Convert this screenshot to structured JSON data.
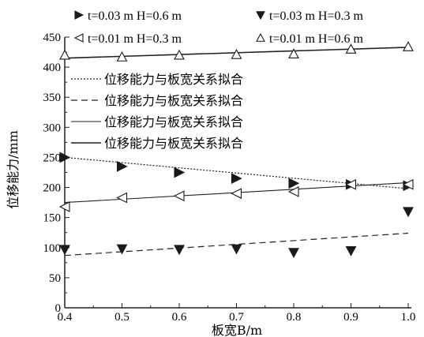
{
  "chart_data": {
    "type": "scatter",
    "xlabel": "板宽B/m",
    "ylabel": "位移能力/mm",
    "xlim": [
      0.4,
      1.0
    ],
    "ylim": [
      0,
      450
    ],
    "xticks": [
      "0.4",
      "0.5",
      "0.6",
      "0.7",
      "0.8",
      "0.9",
      "1.0"
    ],
    "yticks": [
      "0",
      "50",
      "100",
      "150",
      "200",
      "250",
      "300",
      "350",
      "400",
      "450"
    ],
    "grid": false,
    "series": [
      {
        "name": "t=0.03 m H=0.6 m",
        "marker": "triangle-right-filled",
        "x": [
          0.4,
          0.5,
          0.6,
          0.7,
          0.8,
          0.9,
          1.0
        ],
        "y": [
          250,
          235,
          225,
          215,
          207,
          205,
          203
        ]
      },
      {
        "name": "t=0.03 m H=0.3 m",
        "marker": "triangle-down-filled",
        "x": [
          0.4,
          0.5,
          0.6,
          0.7,
          0.8,
          0.9,
          1.0
        ],
        "y": [
          97,
          98,
          97,
          98,
          92,
          95,
          160
        ]
      },
      {
        "name": "t=0.01 m H=0.3 m",
        "marker": "triangle-left-open",
        "x": [
          0.4,
          0.5,
          0.6,
          0.7,
          0.8,
          0.9,
          1.0
        ],
        "y": [
          168,
          183,
          186,
          190,
          193,
          205,
          205
        ]
      },
      {
        "name": "t=0.01 m H=0.6 m",
        "marker": "triangle-up-open",
        "x": [
          0.4,
          0.5,
          0.6,
          0.7,
          0.8,
          0.9,
          1.0
        ],
        "y": [
          420,
          417,
          420,
          421,
          422,
          430,
          434
        ]
      }
    ],
    "fits": [
      {
        "label": "位移能力与板宽关系拟合",
        "style": "dotted",
        "x": [
          0.4,
          1.0
        ],
        "y": [
          250,
          198
        ]
      },
      {
        "label": "位移能力与板宽关系拟合",
        "style": "dashed",
        "x": [
          0.4,
          1.0
        ],
        "y": [
          87,
          124
        ]
      },
      {
        "label": "位移能力与板宽关系拟合",
        "style": "thin-solid",
        "x": [
          0.4,
          1.0
        ],
        "y": [
          175,
          208
        ]
      },
      {
        "label": "位移能力与板宽关系拟合",
        "style": "solid",
        "x": [
          0.4,
          1.0
        ],
        "y": [
          415,
          433
        ]
      }
    ]
  }
}
